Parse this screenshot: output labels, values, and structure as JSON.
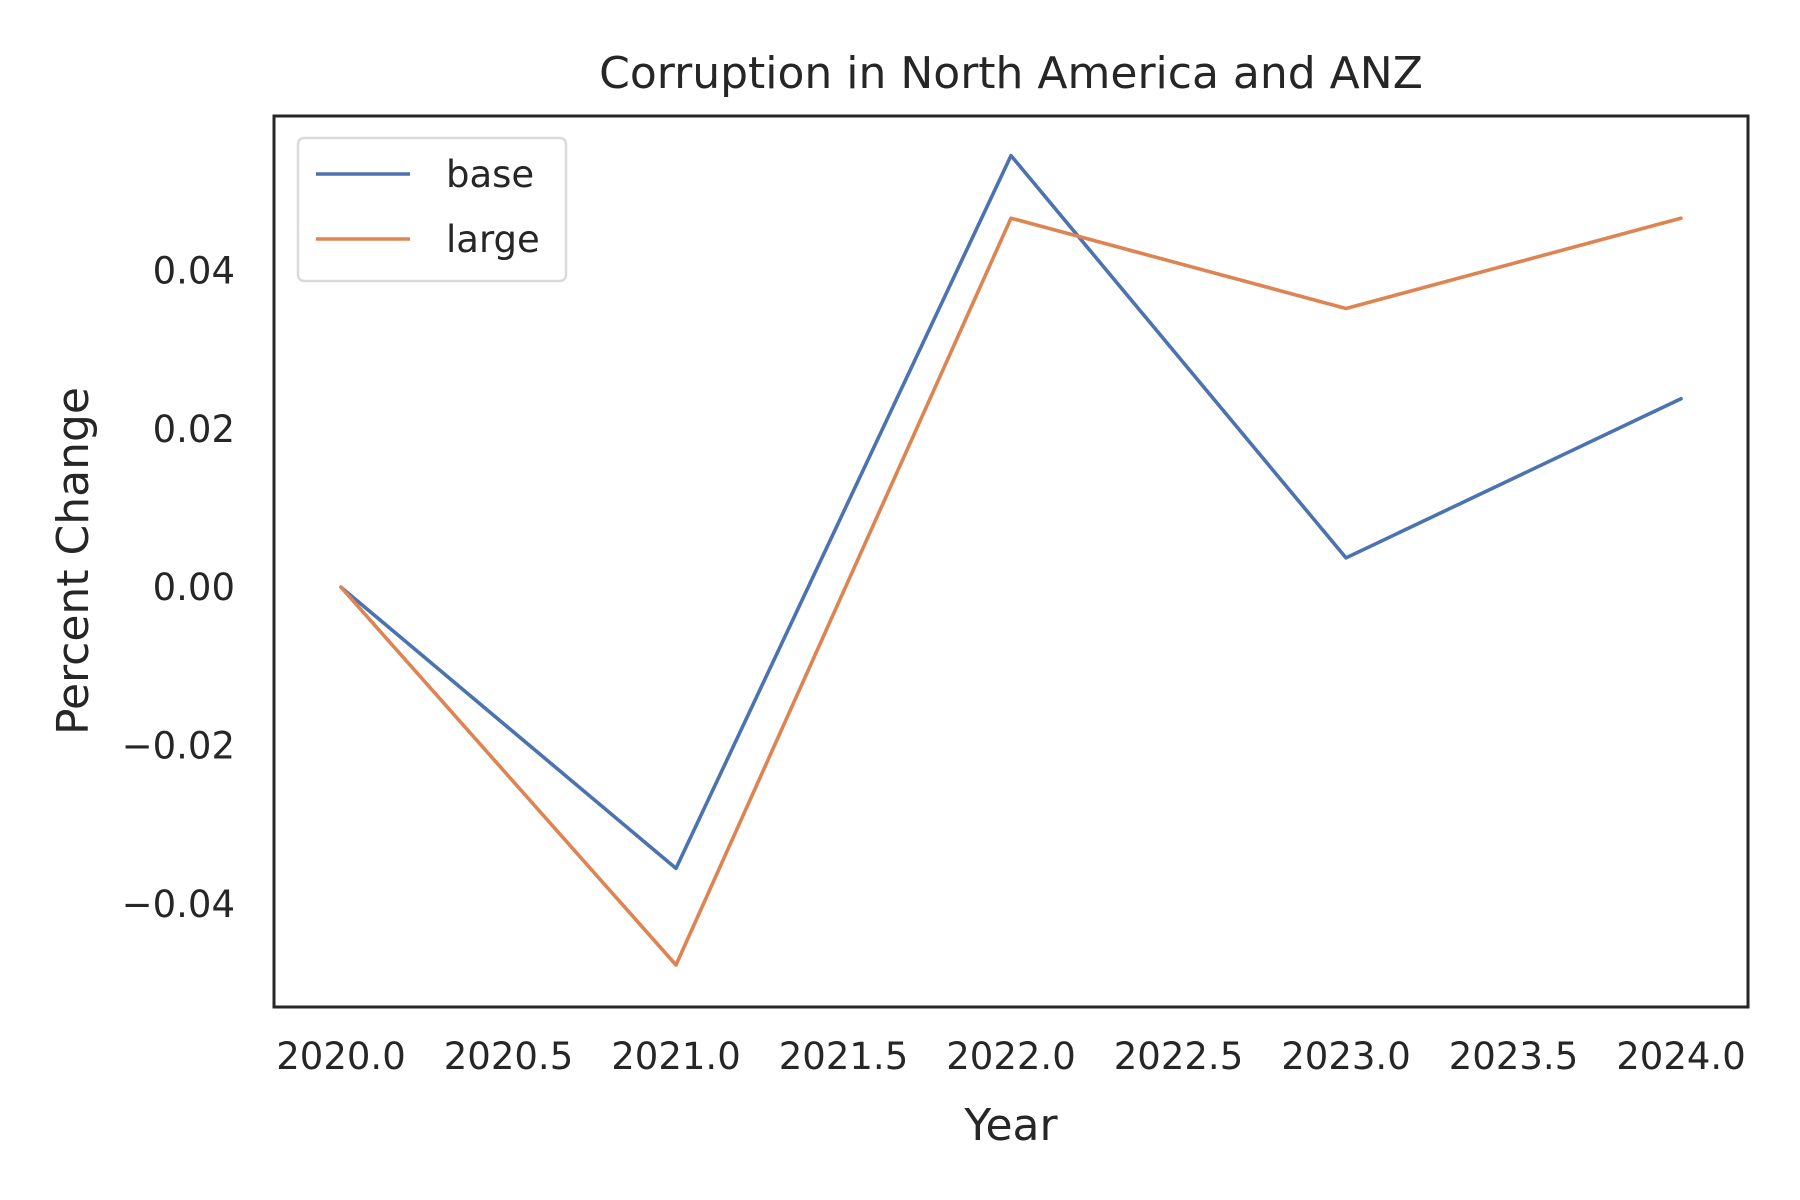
{
  "chart_data": {
    "type": "line",
    "title": "Corruption in North America and ANZ",
    "xlabel": "Year",
    "ylabel": "Percent Change",
    "x": [
      2020,
      2021,
      2022,
      2023,
      2024
    ],
    "series": [
      {
        "name": "base",
        "values": [
          0.0,
          -0.0355,
          0.0545,
          0.0037,
          0.0238
        ],
        "color": "#4c72b0"
      },
      {
        "name": "large",
        "values": [
          0.0,
          -0.0477,
          0.0466,
          0.0352,
          0.0466
        ],
        "color": "#dd8452"
      }
    ],
    "xlim": [
      2019.8,
      2024.2
    ],
    "ylim": [
      -0.053,
      0.0595
    ],
    "xticks": [
      2020.0,
      2020.5,
      2021.0,
      2021.5,
      2022.0,
      2022.5,
      2023.0,
      2023.5,
      2024.0
    ],
    "xtick_labels": [
      "2020.0",
      "2020.5",
      "2021.0",
      "2021.5",
      "2022.0",
      "2022.5",
      "2023.0",
      "2023.5",
      "2024.0"
    ],
    "yticks": [
      -0.04,
      -0.02,
      0.0,
      0.02,
      0.04
    ],
    "ytick_labels": [
      "−0.04",
      "−0.02",
      "0.00",
      "0.02",
      "0.04"
    ],
    "grid": false,
    "legend_position": "upper-left"
  }
}
